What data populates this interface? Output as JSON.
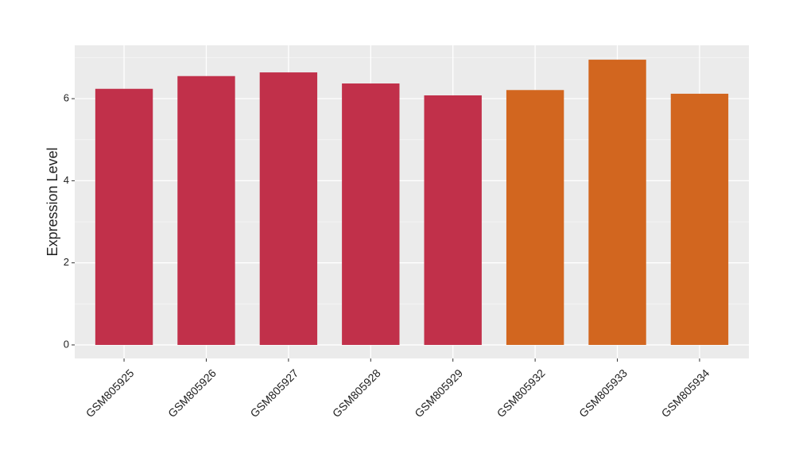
{
  "chart_data": {
    "type": "bar",
    "y_label": "Expression Level",
    "categories": [
      "GSM805925",
      "GSM805926",
      "GSM805927",
      "GSM805928",
      "GSM805929",
      "GSM805932",
      "GSM805933",
      "GSM805934"
    ],
    "values": [
      6.24,
      6.55,
      6.64,
      6.37,
      6.08,
      6.21,
      6.95,
      6.12
    ],
    "colors": [
      "#c1304a",
      "#c1304a",
      "#c1304a",
      "#c1304a",
      "#c1304a",
      "#d2661f",
      "#d2661f",
      "#d2661f"
    ],
    "ylim": [
      -0.33,
      7.3
    ],
    "yticks": [
      0,
      2,
      4,
      6
    ],
    "minor_yticks": [
      1,
      3,
      5,
      7
    ],
    "grid": true
  }
}
